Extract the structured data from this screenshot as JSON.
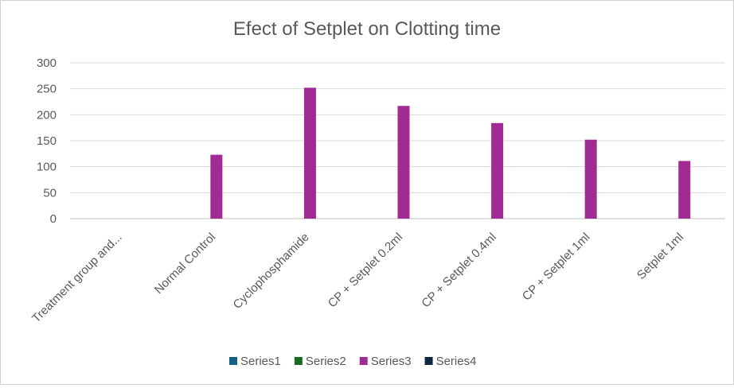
{
  "chart_data": {
    "type": "bar",
    "title": "Efect of Setplet on Clotting time",
    "xlabel": "",
    "ylabel": "",
    "categories": [
      "Treatment group and...",
      "Normal Control",
      "Cyclophosphamide",
      "CP + Setplet 0.2ml",
      "CP + Setplet 0.4ml",
      "CP + Setplet 1ml",
      "Setplet 1ml"
    ],
    "ylim": [
      0,
      300
    ],
    "yticks": [
      0,
      50,
      100,
      150,
      200,
      250,
      300
    ],
    "grid": true,
    "legend_position": "bottom",
    "series": [
      {
        "name": "Series1",
        "color": "#156082",
        "values": [
          null,
          null,
          null,
          null,
          null,
          null,
          null
        ]
      },
      {
        "name": "Series2",
        "color": "#196B24",
        "values": [
          null,
          null,
          null,
          null,
          null,
          null,
          null
        ]
      },
      {
        "name": "Series3",
        "color": "#A02B93",
        "values": [
          null,
          123,
          252,
          217,
          184,
          152,
          111
        ]
      },
      {
        "name": "Series4",
        "color": "#0E2841",
        "values": [
          null,
          null,
          null,
          null,
          null,
          null,
          null
        ]
      }
    ]
  }
}
